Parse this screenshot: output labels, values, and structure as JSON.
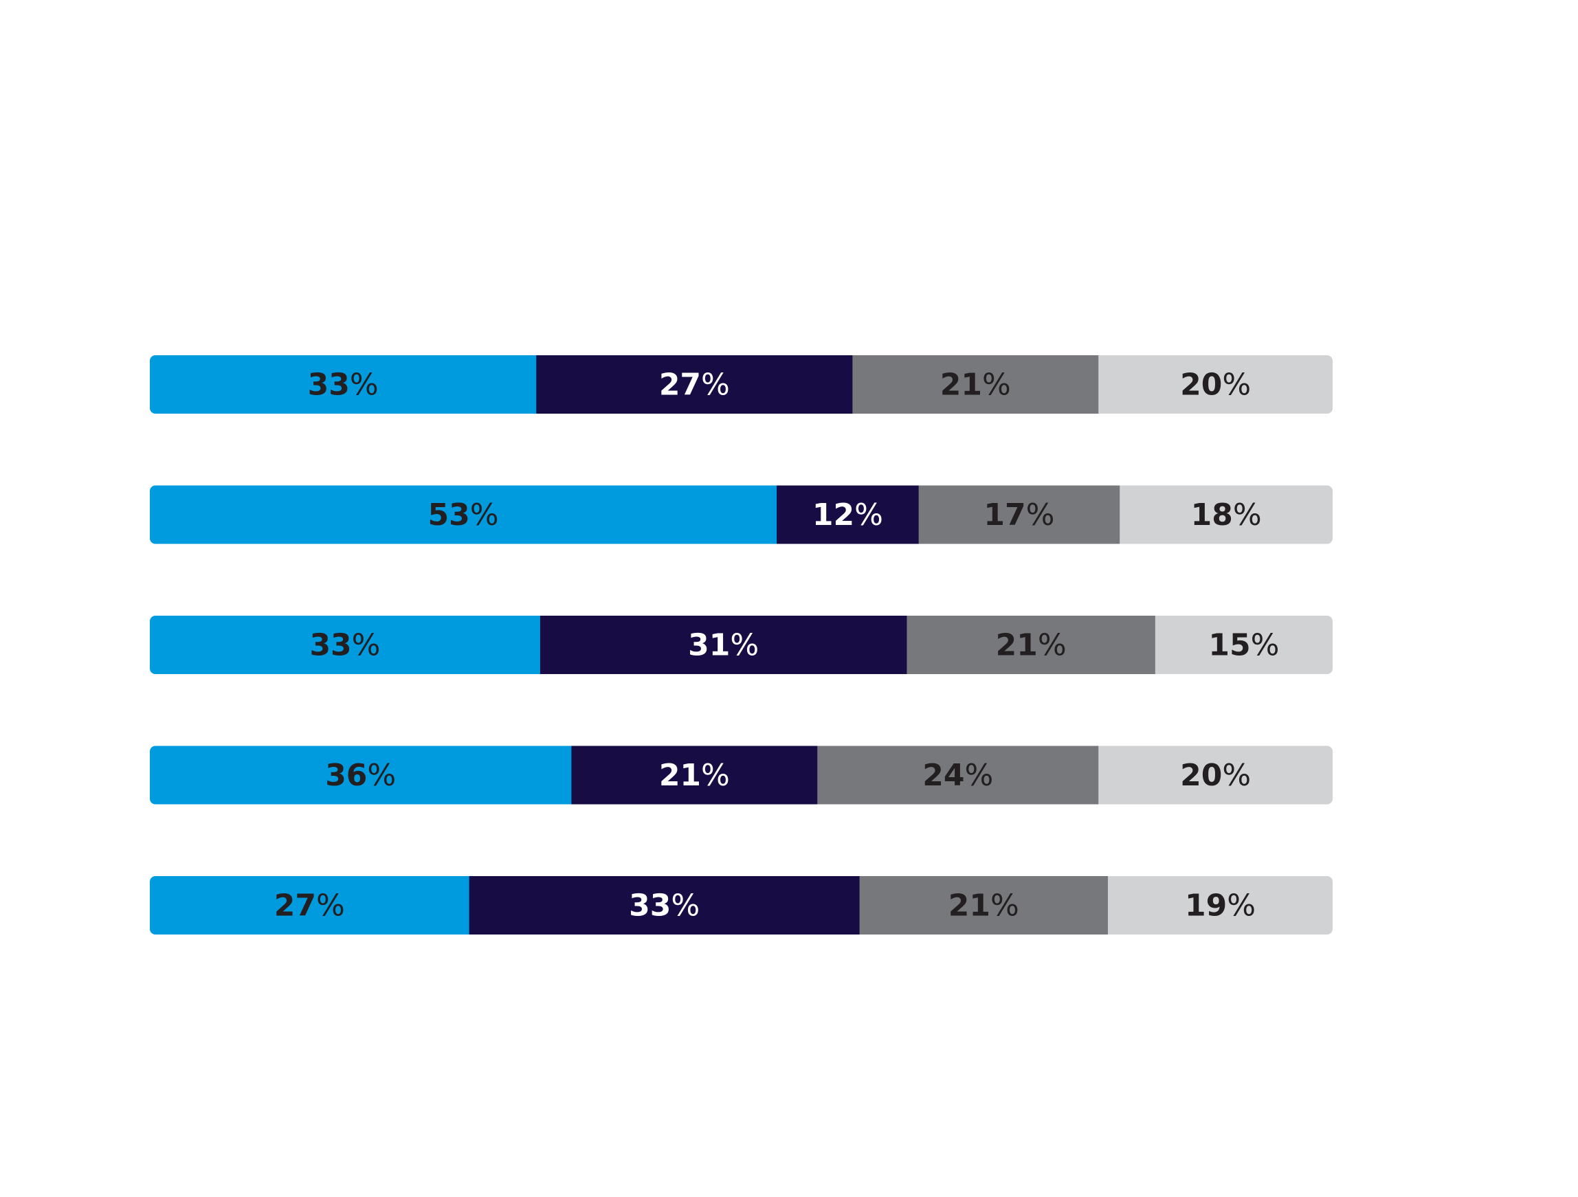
{
  "chart_data": {
    "type": "bar",
    "orientation": "horizontal",
    "stacked": true,
    "title": "",
    "xlabel": "",
    "ylabel": "",
    "xlim": [
      0,
      100
    ],
    "grid": false,
    "legend": "none",
    "value_suffix": "%",
    "rows": [
      {
        "values": [
          33,
          27,
          21,
          20
        ],
        "labels": [
          "33",
          "27",
          "21",
          "20"
        ]
      },
      {
        "values": [
          53,
          12,
          17,
          18
        ],
        "labels": [
          "53",
          "12",
          "17",
          "18"
        ]
      },
      {
        "values": [
          33,
          31,
          21,
          15
        ],
        "labels": [
          "33",
          "31",
          "21",
          "15"
        ]
      },
      {
        "values": [
          36,
          21,
          24,
          20
        ],
        "labels": [
          "36",
          "21",
          "24",
          "20"
        ]
      },
      {
        "values": [
          27,
          33,
          21,
          19
        ],
        "labels": [
          "27",
          "33",
          "21",
          "19"
        ]
      }
    ],
    "segment_colors": [
      "#009ADE",
      "#180C45",
      "#77787B",
      "#D1D2D4"
    ],
    "label_colors": [
      "#231F20",
      "#FFFFFF",
      "#231F20",
      "#231F20"
    ]
  }
}
